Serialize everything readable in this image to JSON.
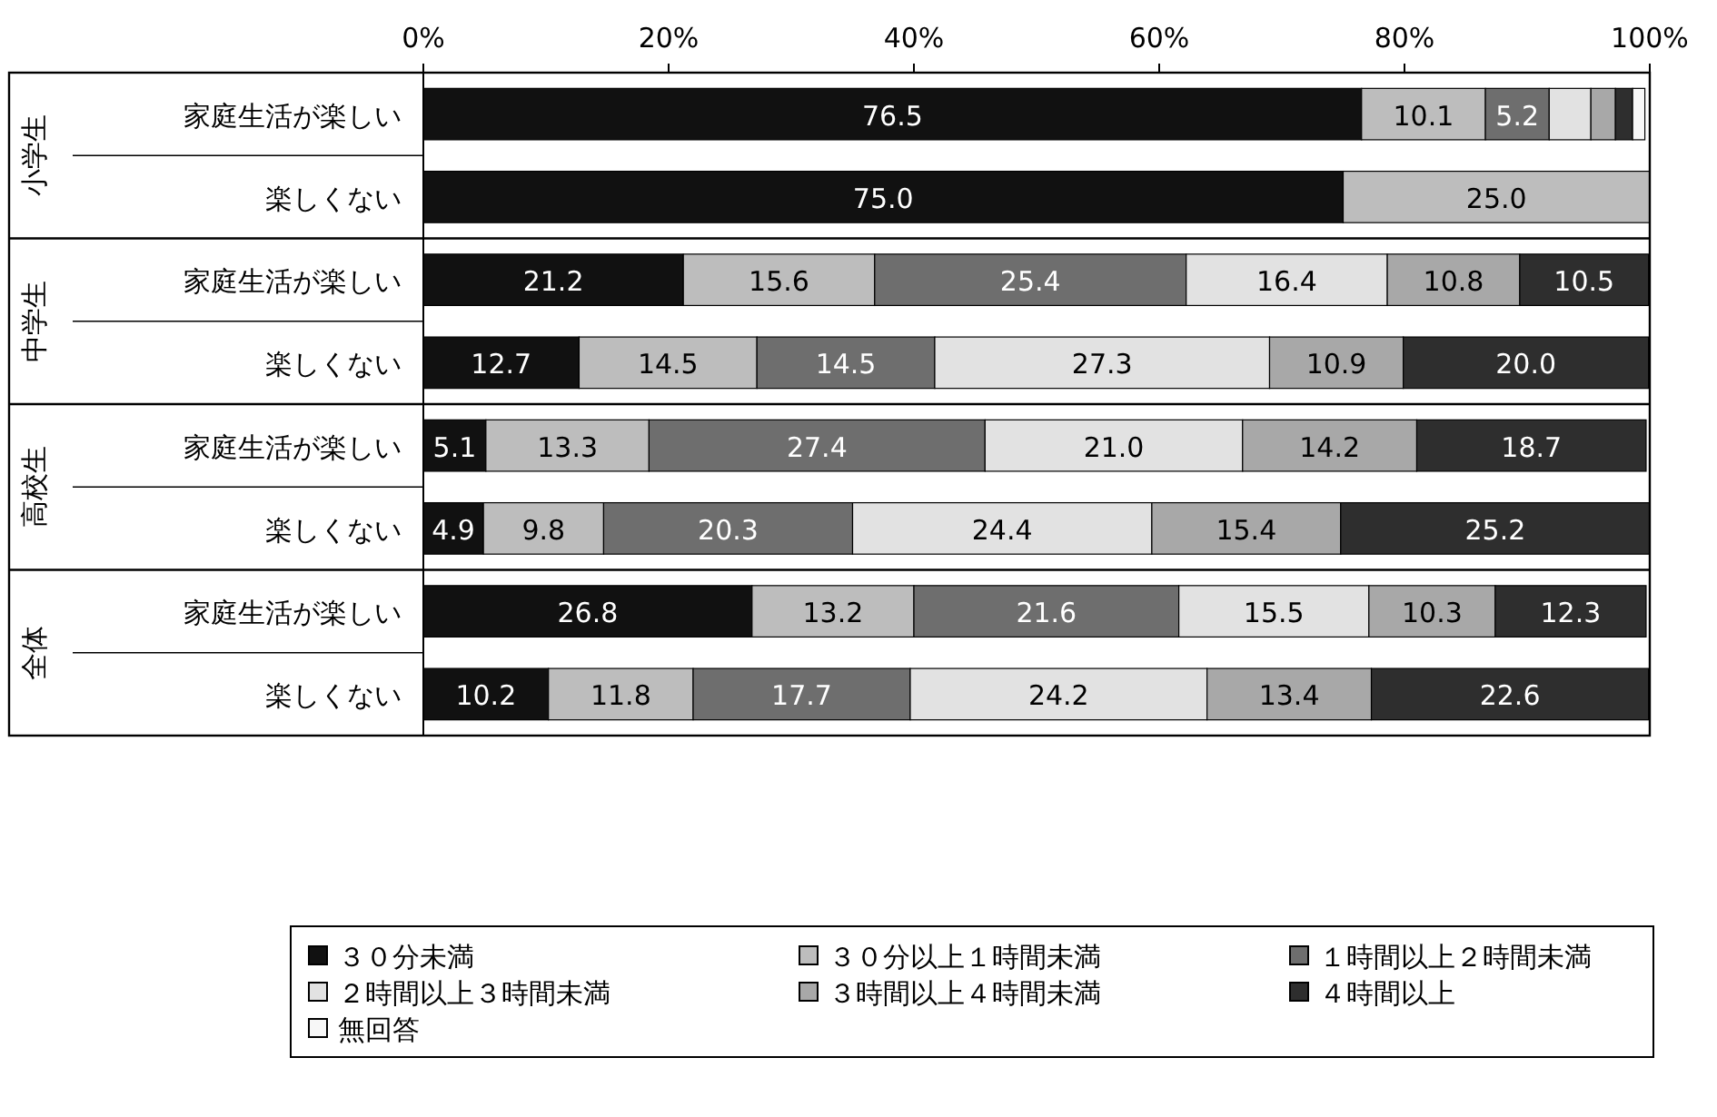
{
  "chart_data": {
    "type": "bar",
    "orientation": "horizontal",
    "stacked": true,
    "categories": [
      "家庭生活が楽しい",
      "楽しくない",
      "家庭生活が楽しい",
      "楽しくない",
      "家庭生活が楽しい",
      "楽しくない",
      "家庭生活が楽しい",
      "楽しくない"
    ],
    "annotations": [
      "小学生",
      "中学生",
      "高校生",
      "全体"
    ],
    "xlim": [
      0,
      100
    ],
    "xticks": [
      {
        "value": 0,
        "label": "0%"
      },
      {
        "value": 20,
        "label": "20%"
      },
      {
        "value": 40,
        "label": "40%"
      },
      {
        "value": 60,
        "label": "60%"
      },
      {
        "value": 80,
        "label": "80%"
      },
      {
        "value": 100,
        "label": "100%"
      }
    ],
    "legend": "bottom",
    "series": [
      {
        "name": "３０分未満",
        "color": "#111111",
        "values": [
          76.5,
          75.0,
          21.2,
          12.7,
          5.1,
          4.9,
          26.8,
          10.2
        ],
        "value_labels": [
          "76.5",
          "75.0",
          "21.2",
          "12.7",
          "5.1",
          "4.9",
          "26.8",
          "10.2"
        ]
      },
      {
        "name": "３０分以上１時間未満",
        "color": "#bdbdbd",
        "values": [
          10.1,
          25.0,
          15.6,
          14.5,
          13.3,
          9.8,
          13.2,
          11.8
        ],
        "value_labels": [
          "10.1",
          "25.0",
          "15.6",
          "14.5",
          "13.3",
          "9.8",
          "13.2",
          "11.8"
        ]
      },
      {
        "name": "１時間以上２時間未満",
        "color": "#6e6e6e",
        "values": [
          5.2,
          null,
          25.4,
          14.5,
          27.4,
          20.3,
          21.6,
          17.7
        ],
        "value_labels": [
          "5.2",
          null,
          "25.4",
          "14.5",
          "27.4",
          "20.3",
          "21.6",
          "17.7"
        ]
      },
      {
        "name": "２時間以上３時間未満",
        "color": "#e2e2e2",
        "values": [
          3.4,
          null,
          16.4,
          27.3,
          21.0,
          24.4,
          15.5,
          24.2
        ],
        "value_labels": [
          null,
          null,
          "16.4",
          "27.3",
          "21.0",
          "24.4",
          "15.5",
          "24.2"
        ]
      },
      {
        "name": "３時間以上４時間未満",
        "color": "#a8a8a8",
        "values": [
          2.0,
          null,
          10.8,
          10.9,
          14.2,
          15.4,
          10.3,
          13.4
        ],
        "value_labels": [
          null,
          null,
          "10.8",
          "10.9",
          "14.2",
          "15.4",
          "10.3",
          "13.4"
        ]
      },
      {
        "name": "４時間以上",
        "color": "#2e2e2e",
        "values": [
          1.4,
          null,
          10.5,
          20.0,
          18.7,
          25.2,
          12.3,
          22.6
        ],
        "value_labels": [
          null,
          null,
          "10.5",
          "20.0",
          "18.7",
          "25.2",
          "12.3",
          "22.6"
        ]
      },
      {
        "name": "無回答",
        "color": "#f7f7f7",
        "values": [
          1.0,
          null,
          null,
          null,
          null,
          null,
          null,
          null
        ],
        "value_labels": [
          null,
          null,
          null,
          null,
          null,
          null,
          null,
          null
        ]
      }
    ]
  }
}
